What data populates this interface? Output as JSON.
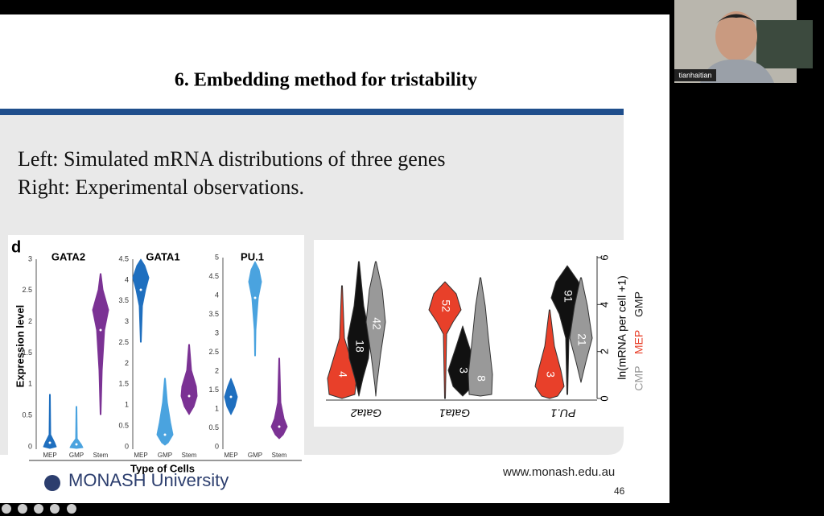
{
  "slide": {
    "title": "6. Embedding method for tristability",
    "lines": [
      "Left: Simulated mRNA distributions of three genes",
      "Right: Experimental observations."
    ],
    "url": "www.monash.edu.au",
    "page": "46",
    "logo": "MONASH University"
  },
  "figure_left": {
    "panel": "d",
    "ylabel": "Expression level",
    "xlabel": "Type of Cells",
    "plots": [
      {
        "title": "GATA2",
        "yticks": [
          "0",
          "0.5",
          "1",
          "1.5",
          "2",
          "2.5",
          "3"
        ],
        "categories": [
          "MEP",
          "GMP",
          "Stem"
        ]
      },
      {
        "title": "GATA1",
        "yticks": [
          "0",
          "0.5",
          "1",
          "1.5",
          "2",
          "2.5",
          "3",
          "3.5",
          "4",
          "4.5"
        ],
        "categories": [
          "MEP",
          "GMP",
          "Stem"
        ]
      },
      {
        "title": "PU.1",
        "yticks": [
          "0",
          "0.5",
          "1",
          "1.5",
          "2",
          "2.5",
          "3",
          "3.5",
          "4",
          "4.5",
          "5"
        ],
        "categories": [
          "MEP",
          "GMP",
          "Stem"
        ]
      }
    ]
  },
  "figure_right": {
    "genes": [
      "Gata2",
      "Gata1",
      "PU.1"
    ],
    "labels": [
      [
        "4",
        "18",
        "42"
      ],
      [
        "52",
        "3",
        "8"
      ],
      [
        "3",
        "91",
        "21"
      ]
    ],
    "yticks": [
      "0",
      "2",
      "4",
      "6"
    ],
    "ylabel": "ln(mRNA per cell +1)",
    "legend": [
      "CMP",
      "MEP",
      "GMP"
    ]
  },
  "video": {
    "name": "tianhaitian"
  }
}
